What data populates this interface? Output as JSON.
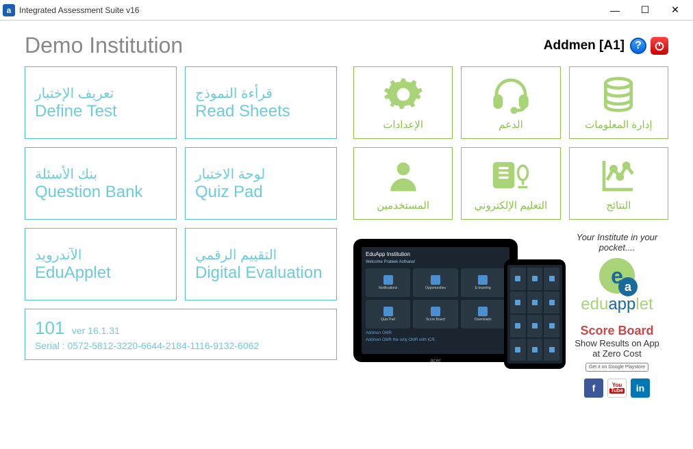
{
  "window": {
    "title": "Integrated Assessment Suite v16"
  },
  "header": {
    "institution": "Demo Institution",
    "user": "Addmen [A1]"
  },
  "left_tiles": [
    [
      {
        "ar": "تعريف الإختبار",
        "en": "Define Test"
      },
      {
        "ar": "قرأءة النموذج",
        "en": "Read Sheets"
      }
    ],
    [
      {
        "ar": "بنك الأسئلة",
        "en": "Question Bank"
      },
      {
        "ar": "لوحة الاختبار",
        "en": "Quiz Pad"
      }
    ],
    [
      {
        "ar": "الآندرويد",
        "en": "EduApplet"
      },
      {
        "ar": "التقييم الرقمي",
        "en": "Digital Evaluation"
      }
    ]
  ],
  "info": {
    "num": "101",
    "ver": "ver 16.1.31",
    "serial": "Serial : 0572-5812-3220-6644-2184-1116-9132-6062"
  },
  "green_tiles": [
    {
      "label": "الإعدادات",
      "icon": "gear"
    },
    {
      "label": "الدعم",
      "icon": "headset"
    },
    {
      "label": "إدارة المعلومات",
      "icon": "database"
    },
    {
      "label": "المستخدمين",
      "icon": "user"
    },
    {
      "label": "التعليم الإلكتروني",
      "icon": "ebook"
    },
    {
      "label": "النتائج",
      "icon": "chart"
    }
  ],
  "tablet": {
    "title": "EduApp Institution",
    "subtitle": "Welcome Prateek Asthana!",
    "apps": [
      "Notifications",
      "Opportunities",
      "E-learning",
      "Quiz Pad",
      "Score Board",
      "Downloads"
    ],
    "footer1": "Addmen OMR",
    "footer2": "Addmen OMR the only OMR with ICR.",
    "brand": "acer"
  },
  "promo": {
    "tagline": "Your Institute in your pocket....",
    "logo_edu": "edu",
    "logo_app": "app",
    "logo_let": "let",
    "scoreboard_title": "Score Board",
    "scoreboard_line1": "Show Results on App",
    "scoreboard_line2": "at Zero Cost",
    "play": "Get it on Google Playstore"
  },
  "colors": {
    "blue": "#6ecbdb",
    "blue_border": "#50c0d0",
    "green": "#8bc34a",
    "green_light": "#a8d477"
  }
}
